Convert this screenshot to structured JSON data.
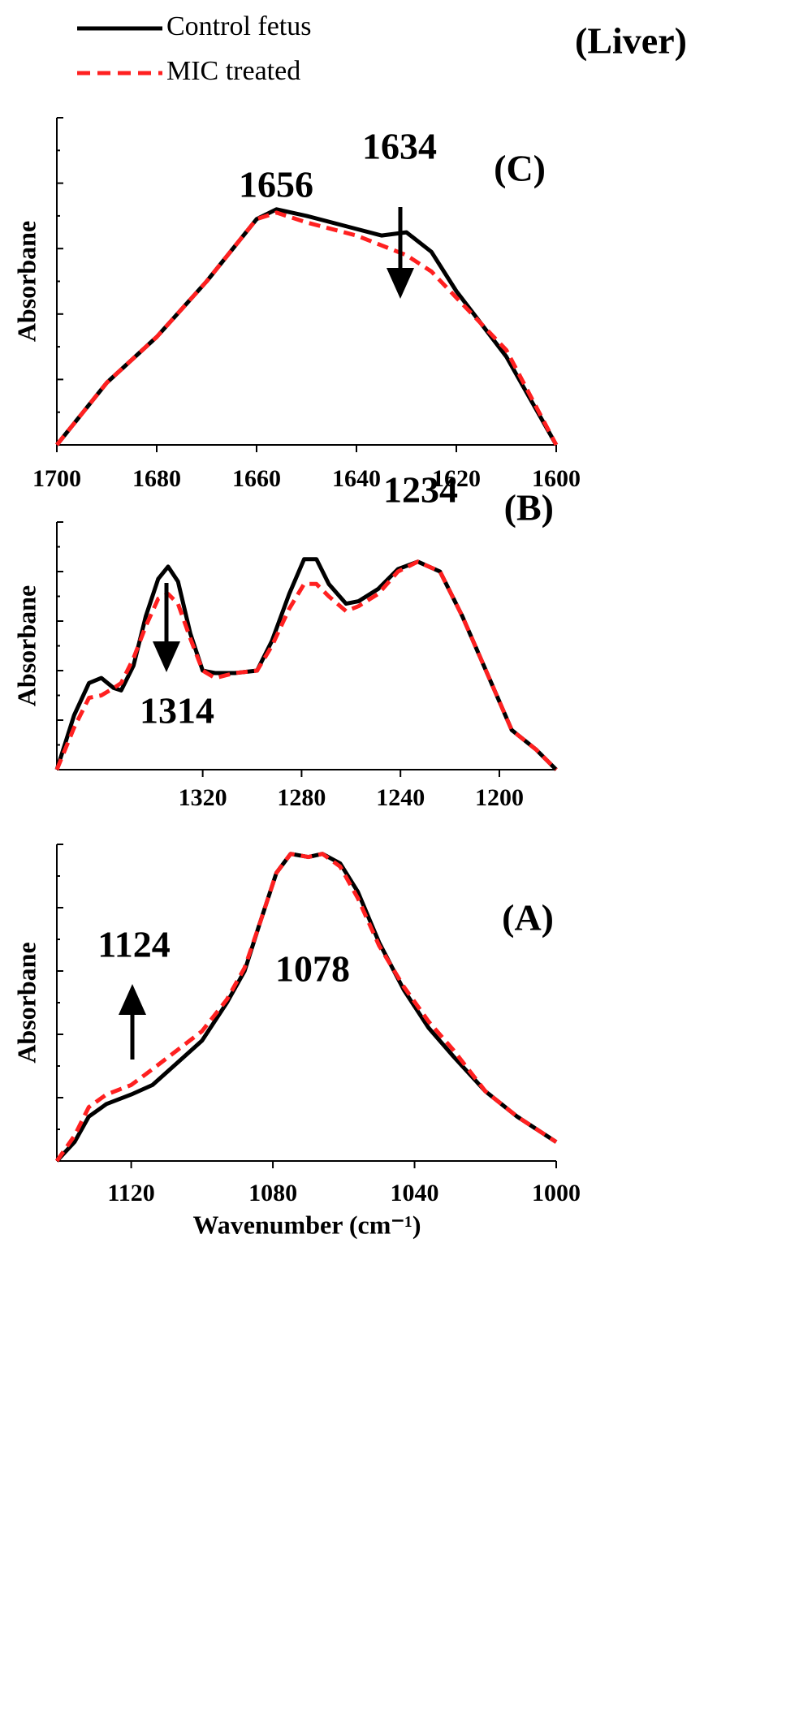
{
  "chart_data": [
    {
      "type": "line",
      "title": "(Liver)",
      "panel_label": "(C)",
      "ylabel": "Absorbane",
      "annotations": [
        "1656",
        "1634"
      ],
      "x": [
        1700,
        1690,
        1680,
        1670,
        1660,
        1656,
        1650,
        1640,
        1635,
        1630,
        1625,
        1620,
        1610,
        1600
      ],
      "series": [
        {
          "name": "Control fetus",
          "color": "#000000",
          "style": "solid",
          "values": [
            0,
            0.19,
            0.33,
            0.5,
            0.69,
            0.72,
            0.7,
            0.66,
            0.64,
            0.65,
            0.59,
            0.47,
            0.27,
            0
          ]
        },
        {
          "name": "MIC treated",
          "color": "#ff2020",
          "style": "dashed",
          "values": [
            0,
            0.19,
            0.33,
            0.5,
            0.69,
            0.71,
            0.68,
            0.64,
            0.61,
            0.58,
            0.53,
            0.45,
            0.29,
            0
          ]
        }
      ],
      "xlim": [
        1700,
        1600
      ],
      "xticks": [
        1700,
        1680,
        1660,
        1640,
        1620,
        1600
      ],
      "ylim": [
        0,
        1
      ]
    },
    {
      "type": "line",
      "panel_label": "(B)",
      "ylabel": "Absorbane",
      "annotations": [
        "1234",
        "1314"
      ],
      "x": [
        1379,
        1372,
        1366,
        1361,
        1356,
        1353,
        1348,
        1343,
        1338,
        1334,
        1330,
        1325,
        1320,
        1315,
        1307,
        1298,
        1292,
        1285,
        1279,
        1274,
        1269,
        1262,
        1257,
        1249,
        1241,
        1233,
        1224,
        1215,
        1205,
        1195,
        1185,
        1177
      ],
      "series": [
        {
          "name": "Control fetus",
          "color": "#000000",
          "style": "solid",
          "values": [
            0,
            0.22,
            0.35,
            0.37,
            0.33,
            0.32,
            0.42,
            0.62,
            0.77,
            0.82,
            0.76,
            0.55,
            0.4,
            0.39,
            0.39,
            0.4,
            0.52,
            0.71,
            0.85,
            0.85,
            0.75,
            0.67,
            0.68,
            0.73,
            0.81,
            0.84,
            0.8,
            0.62,
            0.39,
            0.16,
            0.08,
            0
          ]
        },
        {
          "name": "MIC treated",
          "color": "#ff2020",
          "style": "dashed",
          "values": [
            0,
            0.17,
            0.29,
            0.3,
            0.33,
            0.35,
            0.45,
            0.58,
            0.69,
            0.71,
            0.67,
            0.53,
            0.4,
            0.37,
            0.39,
            0.4,
            0.5,
            0.65,
            0.75,
            0.75,
            0.7,
            0.64,
            0.66,
            0.71,
            0.8,
            0.84,
            0.8,
            0.62,
            0.39,
            0.16,
            0.08,
            0
          ]
        }
      ],
      "xlim": [
        1379,
        1177
      ],
      "xticks": [
        1320,
        1280,
        1240,
        1200
      ],
      "ylim": [
        0,
        1
      ]
    },
    {
      "type": "line",
      "panel_label": "(A)",
      "ylabel": "Absorbane",
      "xlabel": "Wavenumber (cm⁻¹)",
      "annotations": [
        "1124",
        "1078"
      ],
      "x": [
        1141,
        1136,
        1132,
        1127,
        1120,
        1114,
        1107,
        1100,
        1093,
        1088,
        1084,
        1079,
        1075,
        1070,
        1066,
        1061,
        1056,
        1050,
        1043,
        1036,
        1029,
        1020,
        1011,
        1000
      ],
      "series": [
        {
          "name": "Control fetus",
          "color": "#000000",
          "style": "solid",
          "values": [
            0,
            0.06,
            0.14,
            0.18,
            0.21,
            0.24,
            0.31,
            0.38,
            0.5,
            0.6,
            0.74,
            0.91,
            0.97,
            0.96,
            0.97,
            0.94,
            0.85,
            0.69,
            0.54,
            0.42,
            0.33,
            0.22,
            0.14,
            0.06
          ]
        },
        {
          "name": "MIC treated",
          "color": "#ff2020",
          "style": "dashed",
          "values": [
            0,
            0.08,
            0.17,
            0.21,
            0.24,
            0.29,
            0.35,
            0.41,
            0.51,
            0.61,
            0.74,
            0.91,
            0.97,
            0.96,
            0.97,
            0.93,
            0.83,
            0.68,
            0.55,
            0.44,
            0.35,
            0.22,
            0.14,
            0.06
          ]
        }
      ],
      "xlim": [
        1141,
        1000
      ],
      "xticks": [
        1120,
        1080,
        1040,
        1000
      ],
      "ylim": [
        0,
        1
      ]
    }
  ]
}
